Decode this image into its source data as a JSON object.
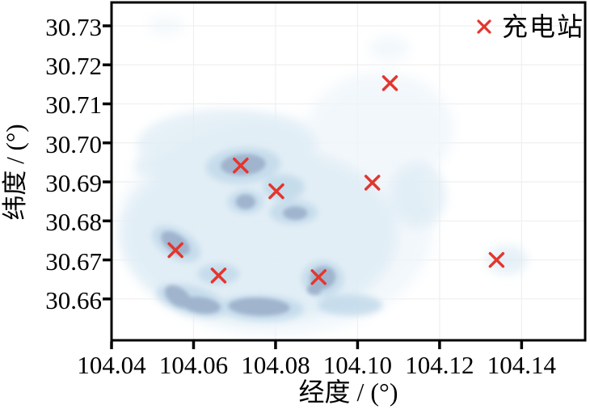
{
  "figure": {
    "background": "#ffffff",
    "description": "KDE density map of charging demand with charging station locations"
  },
  "chart_data": {
    "type": "scatter",
    "title": "",
    "xlabel": "经度 / (°)",
    "ylabel": "纬度 / (°)",
    "xlim": [
      104.04,
      104.1555
    ],
    "ylim": [
      30.6494,
      30.736
    ],
    "grid": true,
    "x_ticks": [
      104.04,
      104.06,
      104.08,
      104.1,
      104.12,
      104.14
    ],
    "x_tick_labels": [
      "104.04",
      "104.06",
      "104.08",
      "104.10",
      "104.12",
      "104.14"
    ],
    "y_ticks": [
      30.66,
      30.67,
      30.68,
      30.69,
      30.7,
      30.71,
      30.72,
      30.73
    ],
    "y_tick_labels": [
      "30.66",
      "30.67",
      "30.68",
      "30.69",
      "30.70",
      "30.71",
      "30.72",
      "30.73"
    ],
    "legend": {
      "position": "upper right",
      "entries": [
        {
          "label": "充电站",
          "marker": "x",
          "color": "#e2362e"
        }
      ]
    },
    "series": [
      {
        "name": "充电站",
        "marker": "x",
        "color": "#e2362e",
        "points": [
          [
            104.0715,
            30.6942
          ],
          [
            104.0802,
            30.6876
          ],
          [
            104.1079,
            30.7153
          ],
          [
            104.1036,
            30.6898
          ],
          [
            104.0556,
            30.6725
          ],
          [
            104.0661,
            30.666
          ],
          [
            104.0905,
            30.6656
          ],
          [
            104.1339,
            30.67
          ]
        ]
      }
    ],
    "density_overlay": {
      "kind": "kde-heatmap",
      "levels": [
        {
          "level": 1,
          "color": "#eef5fa",
          "opacity": 0.75,
          "blur": 8
        },
        {
          "level": 2,
          "color": "#dcebf4",
          "opacity": 0.7,
          "blur": 6
        },
        {
          "level": 3,
          "color": "#bfd8e9",
          "opacity": 0.8,
          "blur": 4
        },
        {
          "level": 4,
          "color": "#9fb2cc",
          "opacity": 0.95,
          "blur": 2.5
        }
      ],
      "blobs": [
        {
          "lon": 104.08,
          "lat": 30.6786,
          "rx": 0.0386,
          "ry": 0.028,
          "rot": 0,
          "level": 1
        },
        {
          "lon": 104.1057,
          "lat": 30.7035,
          "rx": 0.0178,
          "ry": 0.0145,
          "rot": 0,
          "level": 1
        },
        {
          "lon": 104.1038,
          "lat": 30.6952,
          "rx": 0.0119,
          "ry": 0.012,
          "rot": 0,
          "level": 1
        },
        {
          "lon": 104.1077,
          "lat": 30.7242,
          "rx": 0.005,
          "ry": 0.0031,
          "rot": 0,
          "level": 1
        },
        {
          "lon": 104.0533,
          "lat": 30.73,
          "rx": 0.0044,
          "ry": 0.0021,
          "rot": 0,
          "level": 1
        },
        {
          "lon": 104.076,
          "lat": 30.6766,
          "rx": 0.0337,
          "ry": 0.0228,
          "rot": 0,
          "level": 2
        },
        {
          "lon": 104.0681,
          "lat": 30.6994,
          "rx": 0.0218,
          "ry": 0.0093,
          "rot": 0,
          "level": 2
        },
        {
          "lon": 104.1147,
          "lat": 30.6866,
          "rx": 0.0069,
          "ry": 0.0083,
          "rot": 0,
          "level": 2
        },
        {
          "lon": 104.1364,
          "lat": 30.67,
          "rx": 0.005,
          "ry": 0.0037,
          "rot": 0,
          "level": 2
        },
        {
          "lon": 104.0523,
          "lat": 30.6942,
          "rx": 0.0069,
          "ry": 0.0031,
          "rot": 0,
          "level": 2
        },
        {
          "lon": 104.0721,
          "lat": 30.6942,
          "rx": 0.0091,
          "ry": 0.0046,
          "rot": -4,
          "level": 3
        },
        {
          "lon": 104.0727,
          "lat": 30.6849,
          "rx": 0.0044,
          "ry": 0.0031,
          "rot": 0,
          "level": 3
        },
        {
          "lon": 104.0844,
          "lat": 30.6822,
          "rx": 0.0059,
          "ry": 0.0031,
          "rot": 0,
          "level": 3
        },
        {
          "lon": 104.0558,
          "lat": 30.6741,
          "rx": 0.0065,
          "ry": 0.0037,
          "rot": 30,
          "level": 3
        },
        {
          "lon": 104.0596,
          "lat": 30.6596,
          "rx": 0.0089,
          "ry": 0.0037,
          "rot": 15,
          "level": 3
        },
        {
          "lon": 104.0766,
          "lat": 30.6577,
          "rx": 0.0103,
          "ry": 0.0033,
          "rot": 2,
          "level": 3
        },
        {
          "lon": 104.0915,
          "lat": 30.6652,
          "rx": 0.0051,
          "ry": 0.0046,
          "rot": 0,
          "level": 3
        },
        {
          "lon": 104.0661,
          "lat": 30.6664,
          "rx": 0.0051,
          "ry": 0.0027,
          "rot": 0,
          "level": 3
        },
        {
          "lon": 104.0982,
          "lat": 30.6584,
          "rx": 0.0079,
          "ry": 0.0027,
          "rot": 0,
          "level": 3
        },
        {
          "lon": 104.082,
          "lat": 30.6886,
          "rx": 0.0051,
          "ry": 0.0033,
          "rot": 0,
          "level": 3
        },
        {
          "lon": 104.0721,
          "lat": 30.6944,
          "rx": 0.0055,
          "ry": 0.0027,
          "rot": -4,
          "level": 4
        },
        {
          "lon": 104.0727,
          "lat": 30.6849,
          "rx": 0.0024,
          "ry": 0.0019,
          "rot": 0,
          "level": 4
        },
        {
          "lon": 104.0848,
          "lat": 30.682,
          "rx": 0.003,
          "ry": 0.0017,
          "rot": 0,
          "level": 4
        },
        {
          "lon": 104.0556,
          "lat": 30.6743,
          "rx": 0.004,
          "ry": 0.0023,
          "rot": 35,
          "level": 4
        },
        {
          "lon": 104.0562,
          "lat": 30.6606,
          "rx": 0.0036,
          "ry": 0.0023,
          "rot": 35,
          "level": 4
        },
        {
          "lon": 104.0618,
          "lat": 30.6584,
          "rx": 0.0048,
          "ry": 0.0021,
          "rot": 8,
          "level": 4
        },
        {
          "lon": 104.076,
          "lat": 30.658,
          "rx": 0.0075,
          "ry": 0.0023,
          "rot": 2,
          "level": 4
        },
        {
          "lon": 104.0915,
          "lat": 30.6654,
          "rx": 0.0032,
          "ry": 0.0029,
          "rot": -20,
          "level": 4
        },
        {
          "lon": 104.0895,
          "lat": 30.6625,
          "rx": 0.0018,
          "ry": 0.0015,
          "rot": 0,
          "level": 4
        }
      ]
    },
    "style": {
      "grid_color": "#f1eeee",
      "spine_color": "#000000",
      "tick_color": "#000000",
      "marker_size": 8,
      "marker_stroke": 3.5
    }
  }
}
